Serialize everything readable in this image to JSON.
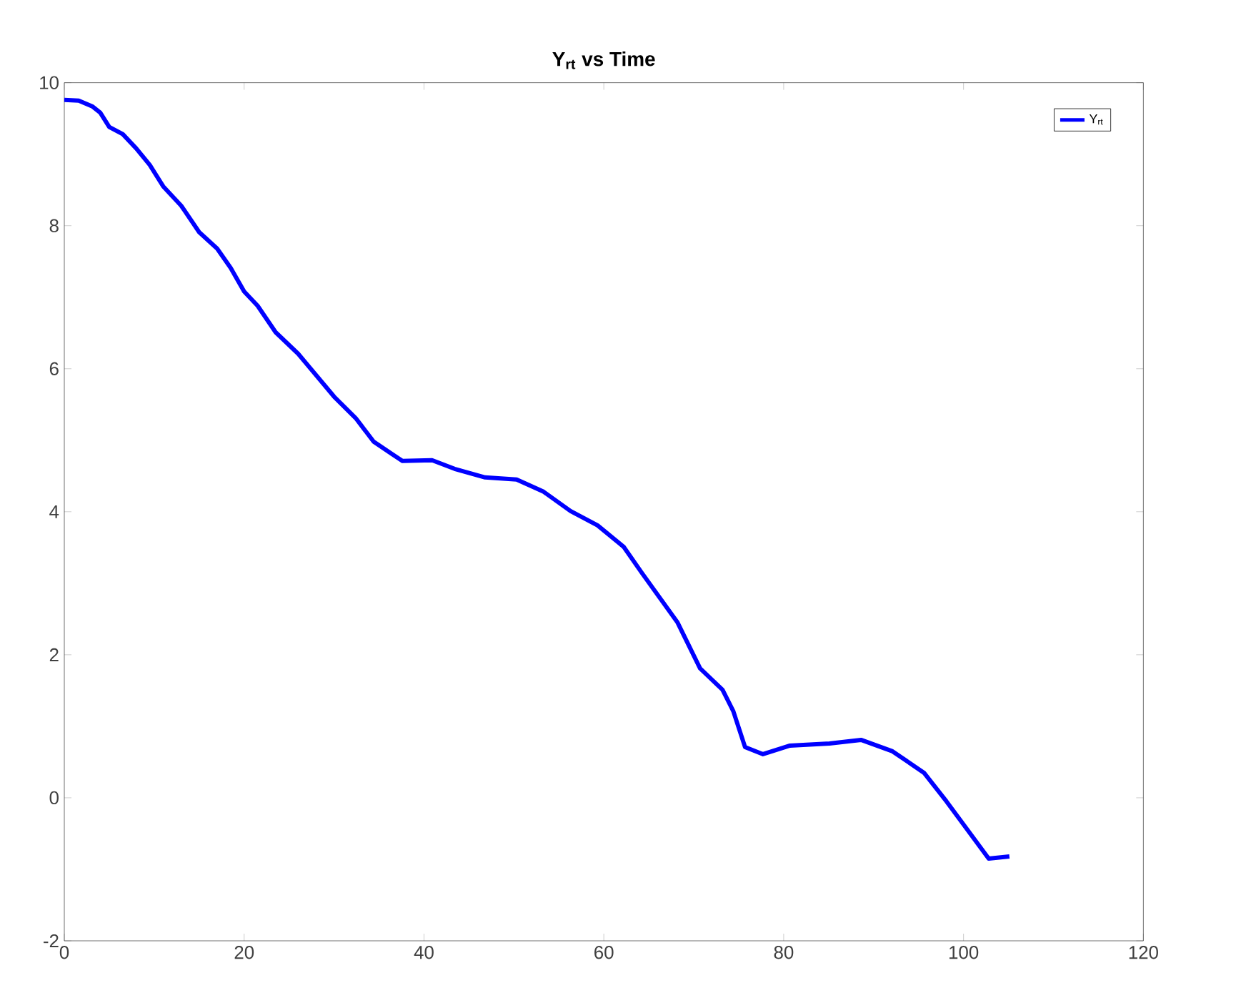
{
  "chart_data": {
    "type": "line",
    "title": "Y$_{rt}$ vs Time",
    "xlim": [
      0,
      120
    ],
    "ylim": [
      -2,
      10
    ],
    "xticks": [
      0,
      20,
      40,
      60,
      80,
      100,
      120
    ],
    "yticks": [
      -2,
      0,
      2,
      4,
      6,
      8,
      10
    ],
    "grid": false,
    "legend": "top right",
    "marker": "none",
    "line_style": "solid",
    "series": [
      {
        "name": "Y$_{rt}$",
        "color": "#0000ff",
        "x": [
          0,
          1.6,
          3.1,
          4.0,
          5.0,
          6.5,
          8.0,
          9.5,
          11.0,
          13.0,
          15.0,
          17.0,
          18.5,
          20.0,
          21.5,
          23.5,
          26,
          28,
          30,
          32.4,
          34.4,
          36.4,
          37.6,
          40.9,
          43.4,
          46.8,
          50.3,
          53.3,
          56.3,
          59.3,
          62.2,
          64.2,
          66.2,
          68.2,
          70.7,
          73.2,
          74.4,
          75.7,
          77.7,
          80.7,
          85.1,
          88.6,
          92.1,
          95.6,
          98.1,
          100.1,
          102.8,
          105.1
        ],
        "values": [
          9.76,
          9.75,
          9.67,
          9.58,
          9.38,
          9.28,
          9.08,
          8.85,
          8.55,
          8.28,
          7.91,
          7.68,
          7.41,
          7.08,
          6.88,
          6.51,
          6.21,
          5.91,
          5.61,
          5.31,
          4.98,
          4.81,
          4.71,
          4.72,
          4.6,
          4.48,
          4.45,
          4.28,
          4.01,
          3.81,
          3.51,
          3.15,
          2.8,
          2.45,
          1.81,
          1.51,
          1.21,
          0.71,
          0.61,
          0.73,
          0.76,
          0.81,
          0.65,
          0.35,
          -0.05,
          -0.39,
          -0.85,
          -0.82
        ]
      }
    ]
  }
}
